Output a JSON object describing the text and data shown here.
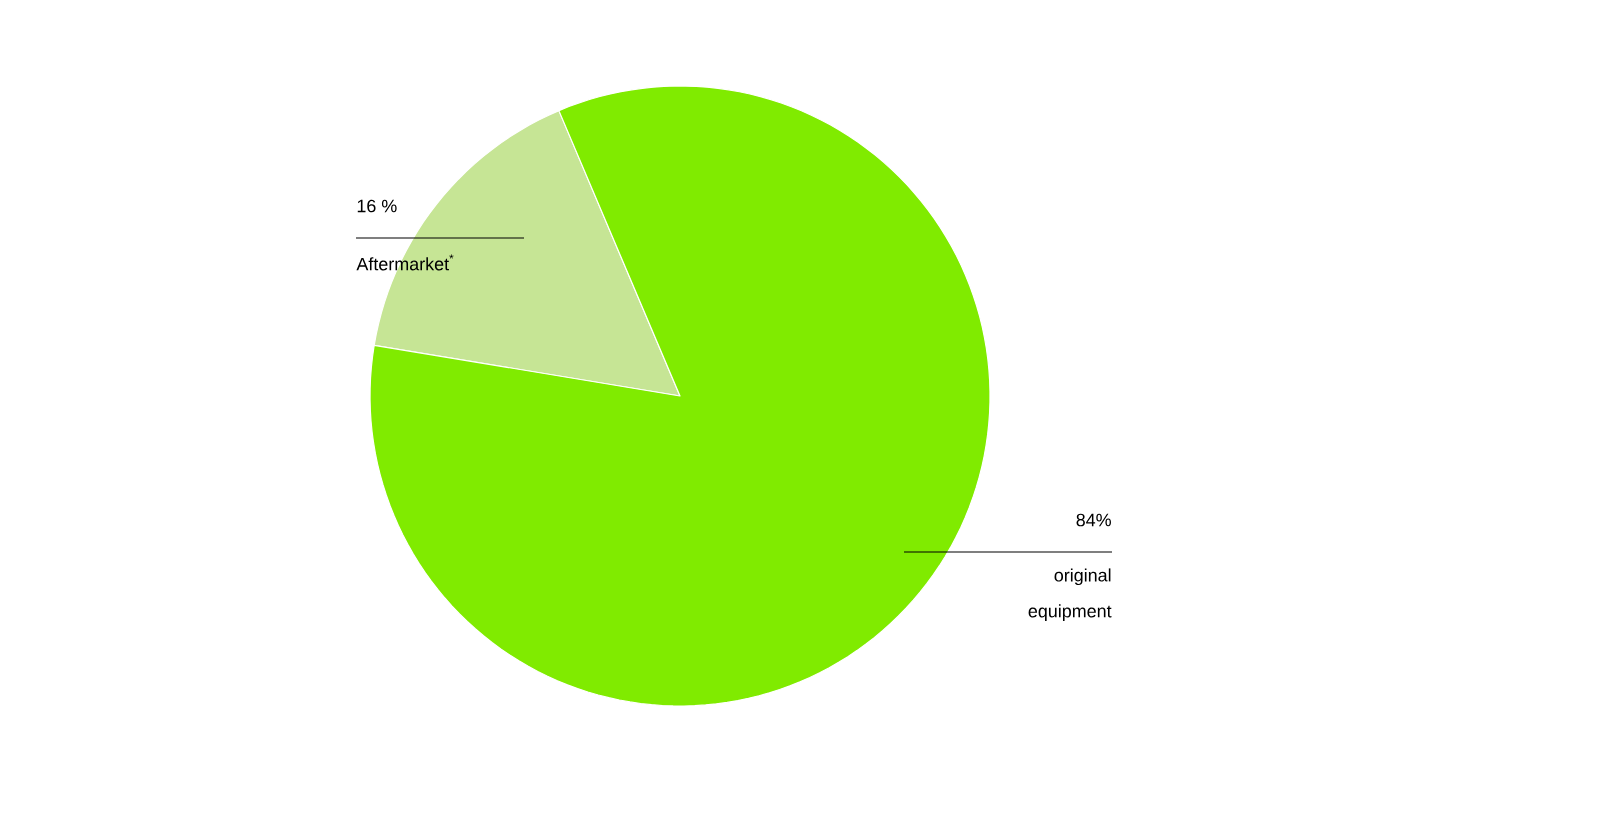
{
  "chart_data": {
    "type": "pie",
    "categories": [
      "Aftermarket$^{*}$",
      "original equipment"
    ],
    "values": [
      16,
      84
    ],
    "value_labels": [
      "16 %",
      "84%"
    ],
    "colors": [
      "#c6e595",
      "#80eb00"
    ]
  }
}
